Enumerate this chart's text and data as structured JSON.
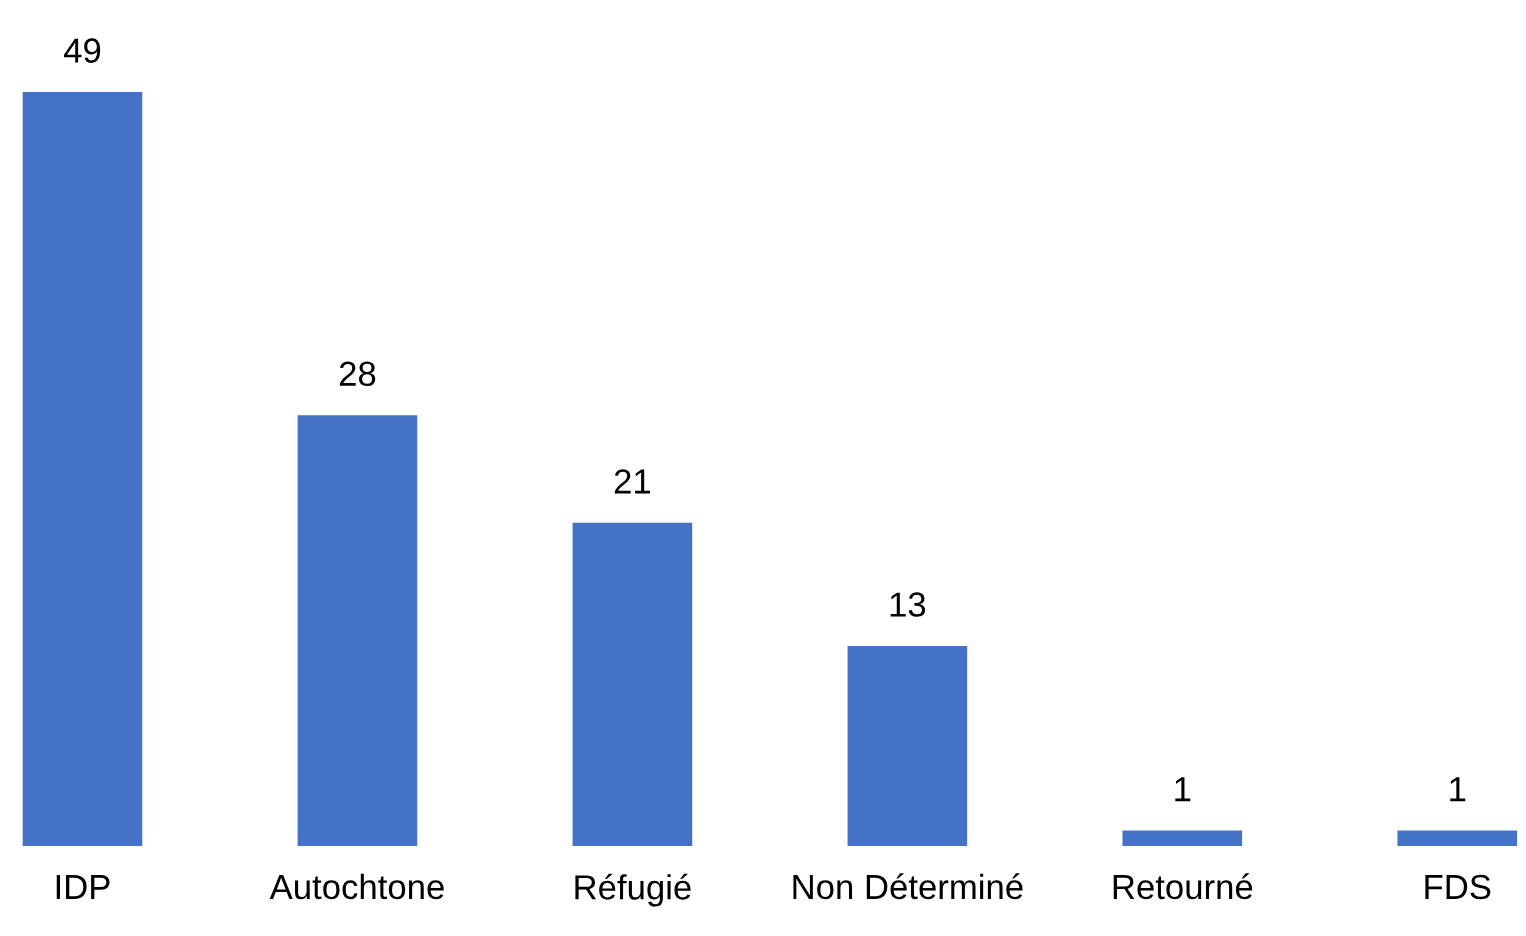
{
  "chart_data": {
    "type": "bar",
    "categories": [
      "IDP",
      "Autochtone",
      "Réfugié",
      "Non Déterminé",
      "Retourné",
      "FDS"
    ],
    "values": [
      49,
      28,
      21,
      13,
      1,
      1
    ],
    "color": "#4472c4",
    "data_labels": true,
    "grid": false,
    "legend": false
  }
}
